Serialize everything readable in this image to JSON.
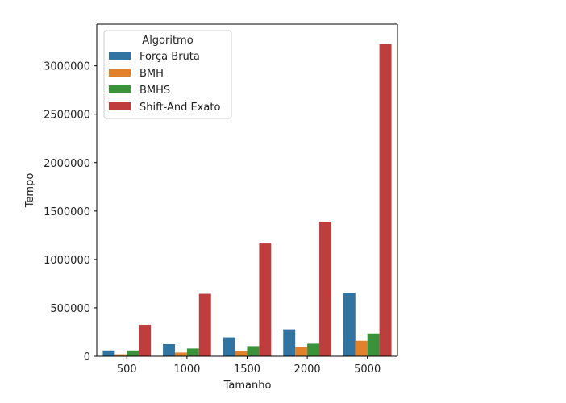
{
  "chart_data": {
    "type": "bar",
    "title": "",
    "xlabel": "Tamanho",
    "ylabel": "Tempo",
    "categories": [
      "500",
      "1000",
      "1500",
      "2000",
      "5000"
    ],
    "ylim": [
      0,
      3430000
    ],
    "yticks": [
      0,
      500000,
      1000000,
      1500000,
      2000000,
      2500000,
      3000000
    ],
    "ytick_labels": [
      "0",
      "500000",
      "1000000",
      "1500000",
      "2000000",
      "2500000",
      "3000000"
    ],
    "legend": {
      "title": "Algoritmo",
      "placement": "top-left"
    },
    "grid": false,
    "series": [
      {
        "name": "Força Bruta",
        "color": "#3274a1",
        "values": [
          60000,
          125000,
          195000,
          278000,
          655000
        ]
      },
      {
        "name": "BMH",
        "color": "#e1812c",
        "values": [
          20000,
          38000,
          55000,
          92000,
          160000
        ]
      },
      {
        "name": "BMHS",
        "color": "#3a923a",
        "values": [
          60000,
          80000,
          105000,
          130000,
          235000
        ]
      },
      {
        "name": "Shift-And Exato",
        "color": "#c03d3e",
        "values": [
          325000,
          645000,
          1165000,
          1390000,
          3225000
        ]
      }
    ]
  }
}
